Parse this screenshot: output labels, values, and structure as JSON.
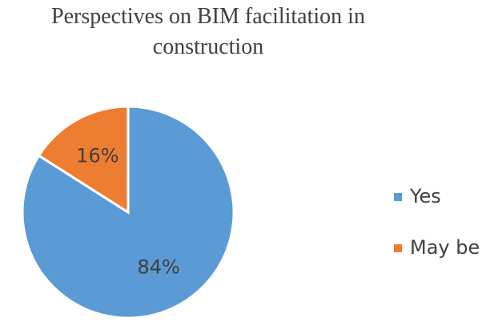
{
  "chart_data": {
    "type": "pie",
    "title": "Perspectives on BIM facilitation in construction",
    "categories": [
      "Yes",
      "May be"
    ],
    "values": [
      84,
      16
    ],
    "value_labels": [
      "84%",
      "16%"
    ],
    "colors": [
      "#5b9bd5",
      "#ed7d31"
    ],
    "legend": "right"
  }
}
